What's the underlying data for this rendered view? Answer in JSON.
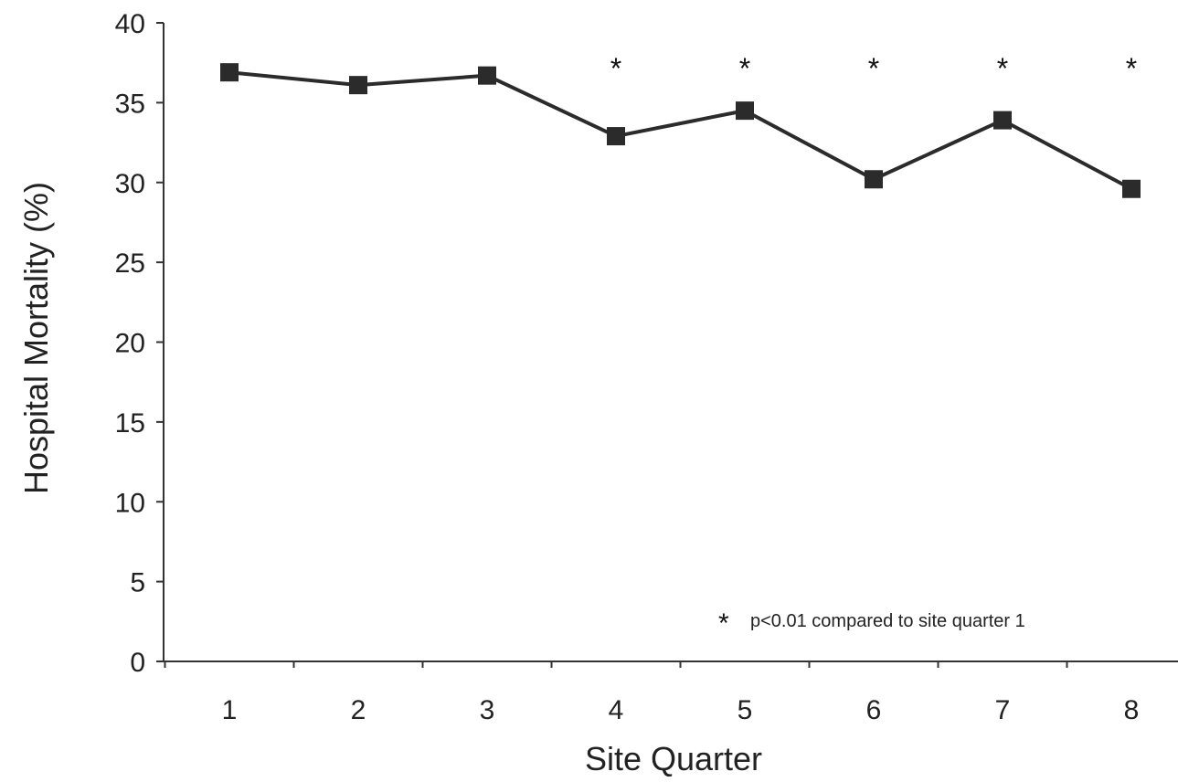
{
  "chart_data": {
    "type": "line",
    "title": "",
    "xlabel": "Site Quarter",
    "ylabel": "Hospital Mortality (%)",
    "categories": [
      "1",
      "2",
      "3",
      "4",
      "5",
      "6",
      "7",
      "8"
    ],
    "ylim": [
      0,
      40
    ],
    "yticks": [
      "0",
      "5",
      "10",
      "15",
      "20",
      "25",
      "30",
      "35",
      "40"
    ],
    "series": [
      {
        "values": [
          36.9,
          36.1,
          36.7,
          32.9,
          34.5,
          30.2,
          33.9,
          29.6
        ]
      }
    ],
    "significance_markers": [
      false,
      false,
      false,
      true,
      true,
      true,
      true,
      true
    ],
    "significance_symbol": "*",
    "legend": {
      "symbol": "*",
      "text": "p<0.01 compared to site quarter 1",
      "placement": "bottom-right"
    },
    "grid": false,
    "colors": {
      "line": "#2b2b2b",
      "marker": "#2b2b2b",
      "axis": "#333333"
    }
  }
}
